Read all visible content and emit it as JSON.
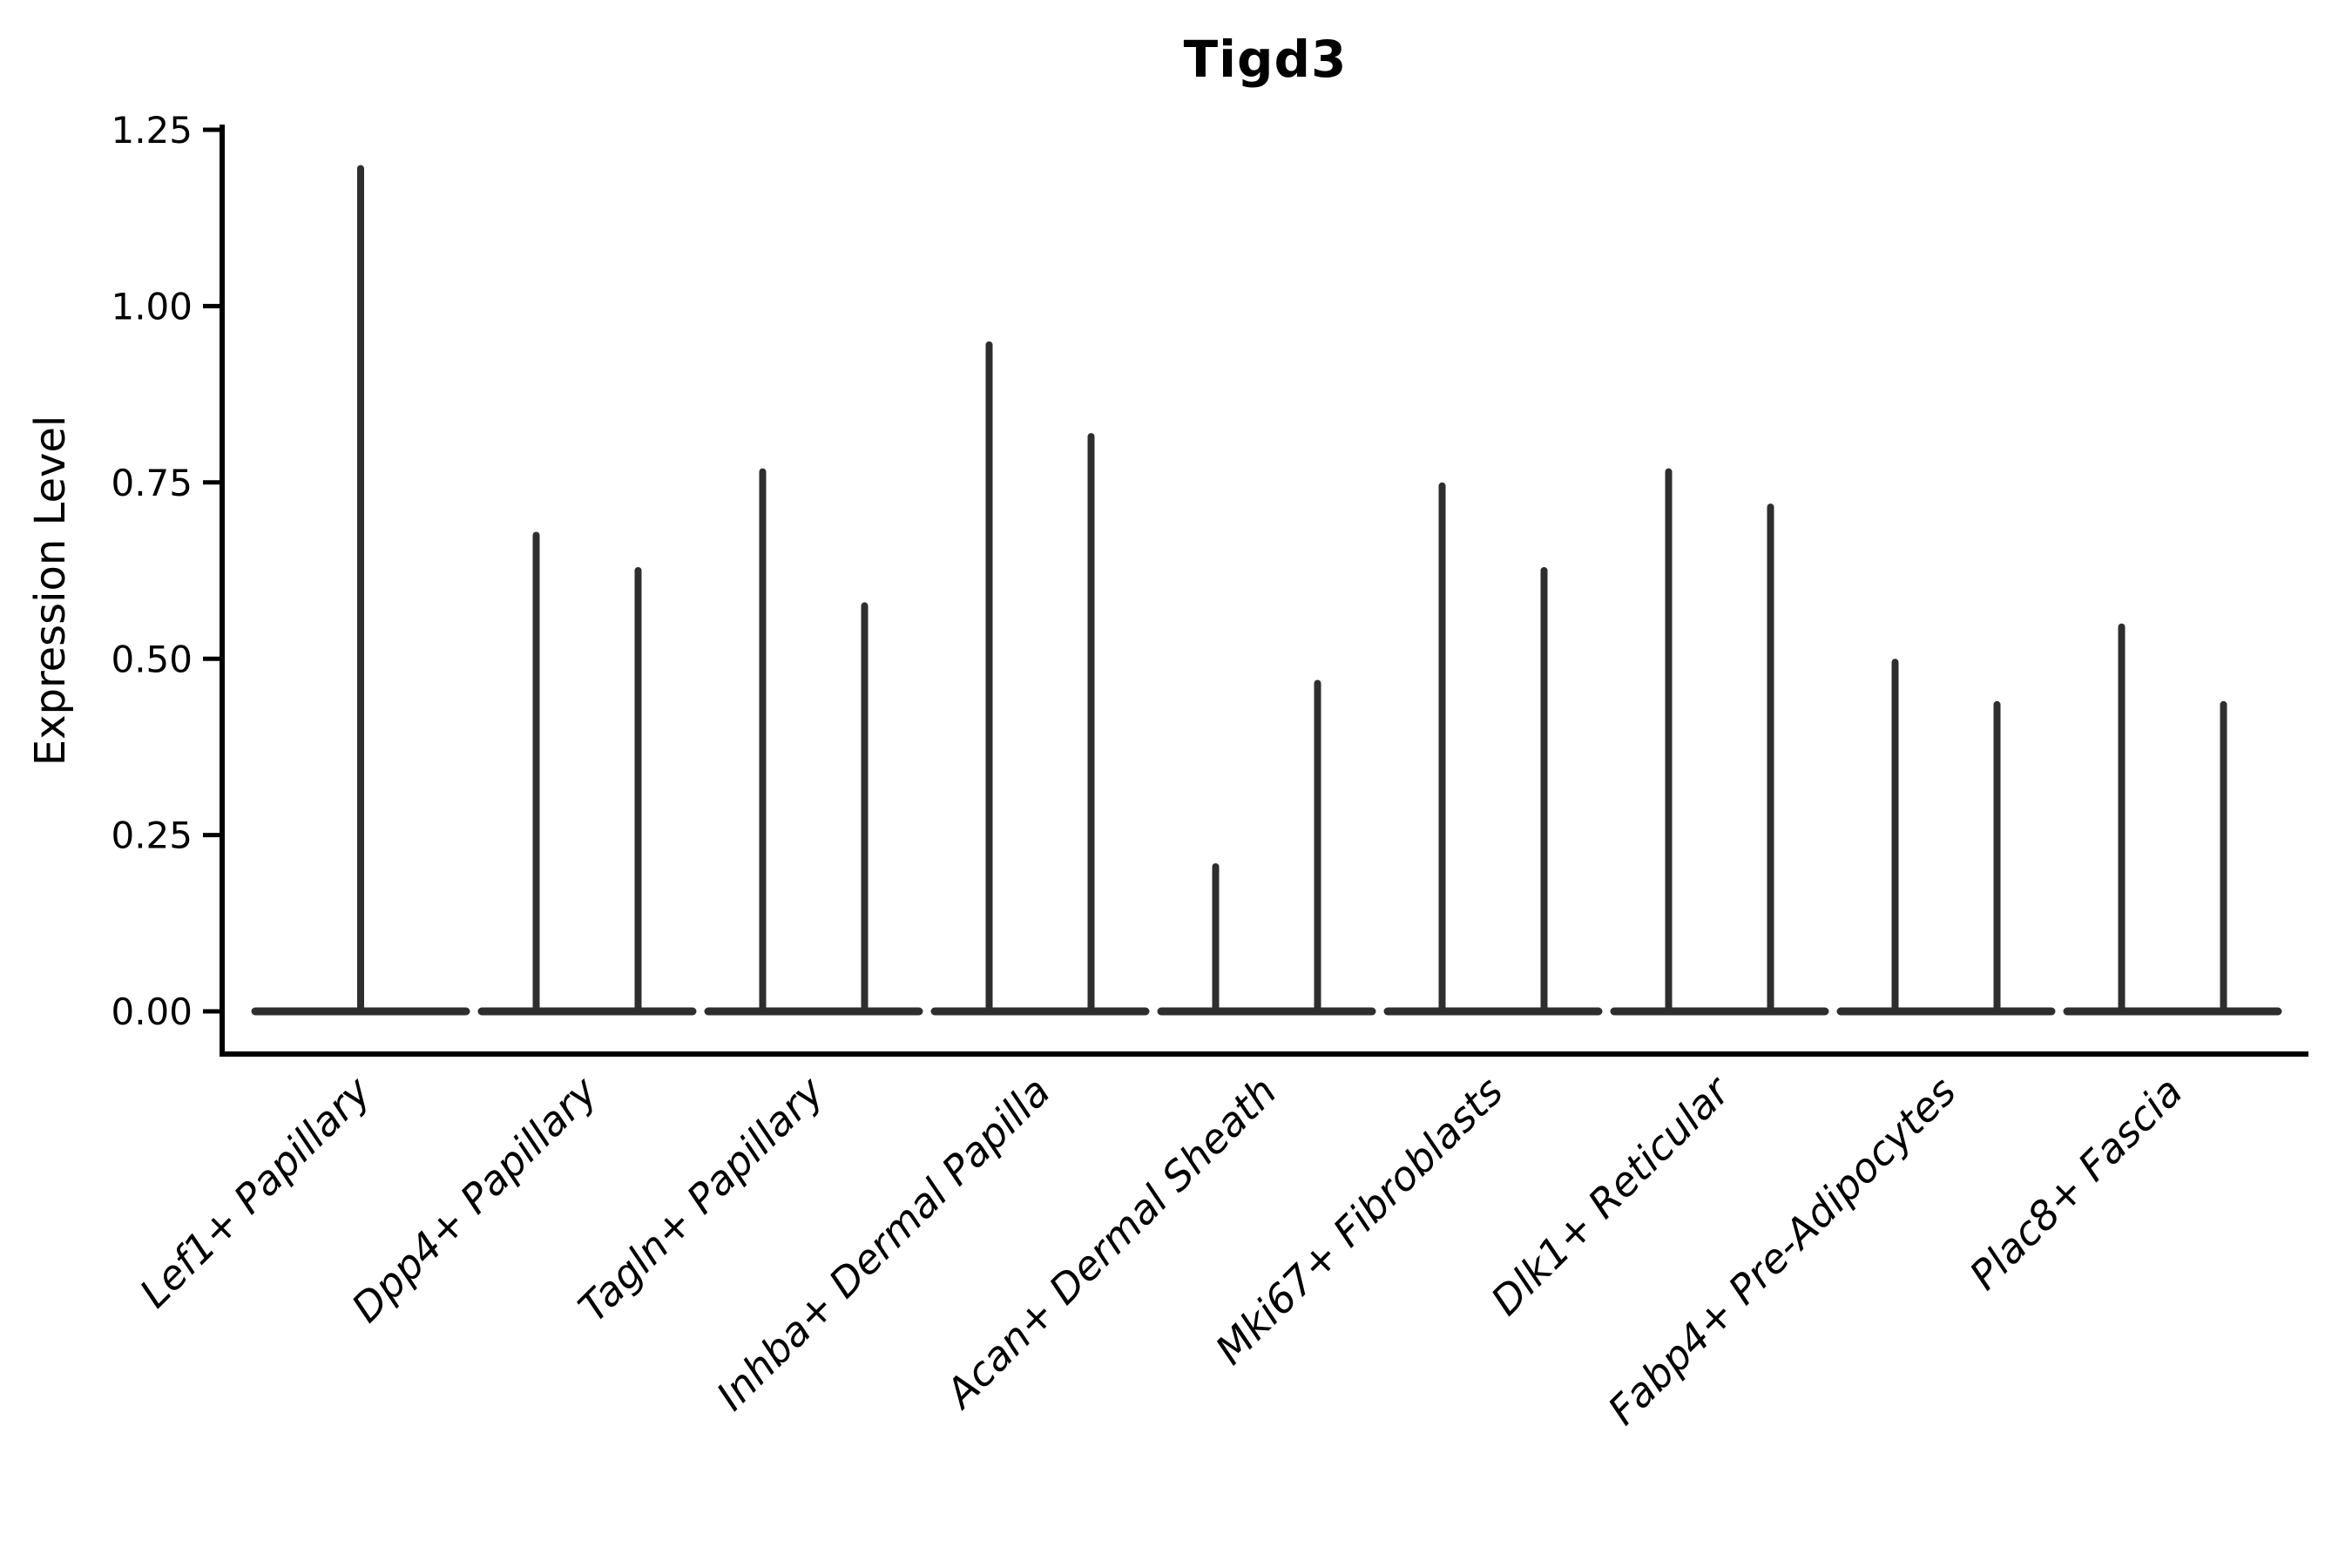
{
  "figure": {
    "title": "Tigd3"
  },
  "chart_data": {
    "type": "violin",
    "title": "Tigd3",
    "xlabel": "",
    "ylabel": "Expression Level",
    "grid": false,
    "legend_position": "none",
    "ylim": [
      -0.06,
      1.26
    ],
    "ytick_labels": [
      "0.00",
      "0.25",
      "0.50",
      "0.75",
      "1.00",
      "1.25"
    ],
    "ytick_values": [
      0,
      0.25,
      0.5,
      0.75,
      1.0,
      1.25
    ],
    "categories": [
      "Lef1+ Papillary",
      "Dpp4+ Papillary",
      "Tagln+ Papillary",
      "Inhba+ Dermal Papilla",
      "Acan+ Dermal Sheath",
      "Mki67+ Fibroblasts",
      "Dlk1+ Reticular",
      "Fabp4+ Pre-Adipocytes",
      "Plac8+ Fascia"
    ],
    "violins": [
      {
        "category": "Lef1+ Papillary",
        "spike_maxima": [
          1.2
        ]
      },
      {
        "category": "Dpp4+ Papillary",
        "spike_maxima": [
          0.68,
          0.63
        ]
      },
      {
        "category": "Tagln+ Papillary",
        "spike_maxima": [
          0.77,
          0.58
        ]
      },
      {
        "category": "Inhba+ Dermal Papilla",
        "spike_maxima": [
          0.95,
          0.82
        ]
      },
      {
        "category": "Acan+ Dermal Sheath",
        "spike_maxima": [
          0.21,
          0.47
        ]
      },
      {
        "category": "Mki67+ Fibroblasts",
        "spike_maxima": [
          0.75,
          0.63
        ]
      },
      {
        "category": "Dlk1+ Reticular",
        "spike_maxima": [
          0.77,
          0.72
        ]
      },
      {
        "category": "Fabp4+ Pre-Adipocytes",
        "spike_maxima": [
          0.5,
          0.44
        ]
      },
      {
        "category": "Plac8+ Fascia",
        "spike_maxima": [
          0.55,
          0.44
        ]
      }
    ],
    "baseline_value": 0.0,
    "colors": {
      "violin": "#2e2e2e",
      "axis": "#000000",
      "text": "#000000",
      "background": "#ffffff"
    }
  }
}
